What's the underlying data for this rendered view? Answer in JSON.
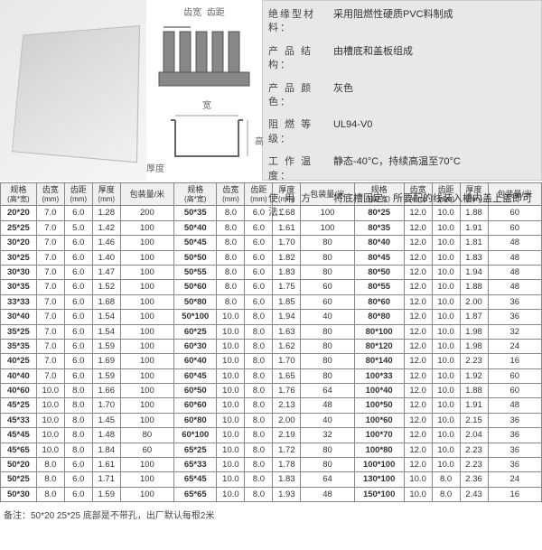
{
  "diag1": {
    "label_width": "齿宽",
    "label_pitch": "齿距"
  },
  "diag2": {
    "label_w": "宽",
    "label_h": "高",
    "label_t": "厚度"
  },
  "specs": [
    {
      "k": "绝缘型材料：",
      "v": "采用阻燃性硬质PVC料制成"
    },
    {
      "k": "产 品 结 构：",
      "v": "由槽底和盖板组成"
    },
    {
      "k": "产 品 颜 色：",
      "v": "灰色"
    },
    {
      "k": "阻 燃 等 级：",
      "v": "UL94-V0"
    },
    {
      "k": "工 作 温 度：",
      "v": "静态-40°C，持续高温至70°C"
    },
    {
      "k": "使 用 方 法：",
      "v": "将底槽固定，所要配的线装入槽内盖上盖即可"
    }
  ],
  "headers": [
    {
      "t": "规格",
      "u": "(高*宽)"
    },
    {
      "t": "齿宽",
      "u": "(mm)"
    },
    {
      "t": "齿距",
      "u": "(mm)"
    },
    {
      "t": "厚度",
      "u": "(mm)"
    },
    {
      "t": "包装量/米",
      "u": ""
    }
  ],
  "cols": 3,
  "rows": [
    [
      "20*20",
      "7.0",
      "6.0",
      "1.28",
      "200",
      "50*35",
      "8.0",
      "6.0",
      "1.68",
      "100",
      "80*25",
      "12.0",
      "10.0",
      "1.88",
      "60"
    ],
    [
      "25*25",
      "7.0",
      "5.0",
      "1.42",
      "100",
      "50*40",
      "8.0",
      "6.0",
      "1.61",
      "100",
      "80*35",
      "12.0",
      "10.0",
      "1.91",
      "60"
    ],
    [
      "30*20",
      "7.0",
      "6.0",
      "1.46",
      "100",
      "50*45",
      "8.0",
      "6.0",
      "1.70",
      "80",
      "80*40",
      "12.0",
      "10.0",
      "1.81",
      "48"
    ],
    [
      "30*25",
      "7.0",
      "6.0",
      "1.40",
      "100",
      "50*50",
      "8.0",
      "6.0",
      "1.82",
      "80",
      "80*45",
      "12.0",
      "10.0",
      "1.83",
      "48"
    ],
    [
      "30*30",
      "7.0",
      "6.0",
      "1.47",
      "100",
      "50*55",
      "8.0",
      "6.0",
      "1.83",
      "80",
      "80*50",
      "12.0",
      "10.0",
      "1.94",
      "48"
    ],
    [
      "30*35",
      "7.0",
      "6.0",
      "1.52",
      "100",
      "50*60",
      "8.0",
      "6.0",
      "1.75",
      "60",
      "80*55",
      "12.0",
      "10.0",
      "1.88",
      "48"
    ],
    [
      "33*33",
      "7.0",
      "6.0",
      "1.68",
      "100",
      "50*80",
      "8.0",
      "6.0",
      "1.85",
      "60",
      "80*60",
      "12.0",
      "10.0",
      "2.00",
      "36"
    ],
    [
      "30*40",
      "7.0",
      "6.0",
      "1.54",
      "100",
      "50*100",
      "10.0",
      "8.0",
      "1.94",
      "40",
      "80*80",
      "12.0",
      "10.0",
      "1.87",
      "36"
    ],
    [
      "35*25",
      "7.0",
      "6.0",
      "1.54",
      "100",
      "60*25",
      "10.0",
      "8.0",
      "1.63",
      "80",
      "80*100",
      "12.0",
      "10.0",
      "1.98",
      "32"
    ],
    [
      "35*35",
      "7.0",
      "6.0",
      "1.59",
      "100",
      "60*30",
      "10.0",
      "8.0",
      "1.62",
      "80",
      "80*120",
      "12.0",
      "10.0",
      "1.98",
      "24"
    ],
    [
      "40*25",
      "7.0",
      "6.0",
      "1.69",
      "100",
      "60*40",
      "10.0",
      "8.0",
      "1.70",
      "80",
      "80*140",
      "12.0",
      "10.0",
      "2.23",
      "16"
    ],
    [
      "40*40",
      "7.0",
      "6.0",
      "1.59",
      "100",
      "60*45",
      "10.0",
      "8.0",
      "1.65",
      "80",
      "100*33",
      "12.0",
      "10.0",
      "1.92",
      "60"
    ],
    [
      "40*60",
      "10.0",
      "8.0",
      "1.66",
      "100",
      "60*50",
      "10.0",
      "8.0",
      "1.76",
      "64",
      "100*40",
      "12.0",
      "10.0",
      "1.88",
      "60"
    ],
    [
      "45*25",
      "10.0",
      "8.0",
      "1.70",
      "100",
      "60*60",
      "10.0",
      "8.0",
      "2.13",
      "48",
      "100*50",
      "12.0",
      "10.0",
      "1.91",
      "48"
    ],
    [
      "45*33",
      "10.0",
      "8.0",
      "1.45",
      "100",
      "60*80",
      "10.0",
      "8.0",
      "2.00",
      "40",
      "100*60",
      "12.0",
      "10.0",
      "2.15",
      "36"
    ],
    [
      "45*45",
      "10.0",
      "8.0",
      "1.48",
      "80",
      "60*100",
      "10.0",
      "8.0",
      "2.19",
      "32",
      "100*70",
      "12.0",
      "10.0",
      "2.04",
      "36"
    ],
    [
      "45*65",
      "10.0",
      "8.0",
      "1.84",
      "60",
      "65*25",
      "10.0",
      "8.0",
      "1.72",
      "80",
      "100*80",
      "12.0",
      "10.0",
      "2.23",
      "36"
    ],
    [
      "50*20",
      "8.0",
      "6.0",
      "1.61",
      "100",
      "65*33",
      "10.0",
      "8.0",
      "1.78",
      "80",
      "100*100",
      "12.0",
      "10.0",
      "2.23",
      "36"
    ],
    [
      "50*25",
      "8.0",
      "6.0",
      "1.71",
      "100",
      "65*45",
      "10.0",
      "8.0",
      "1.83",
      "64",
      "130*100",
      "10.0",
      "8.0",
      "2.36",
      "24"
    ],
    [
      "50*30",
      "8.0",
      "6.0",
      "1.59",
      "100",
      "65*65",
      "10.0",
      "8.0",
      "1.93",
      "48",
      "150*100",
      "10.0",
      "8.0",
      "2.43",
      "16"
    ]
  ],
  "note": "备注：50*20 25*25 底部是不带孔，出厂默认每根2米"
}
